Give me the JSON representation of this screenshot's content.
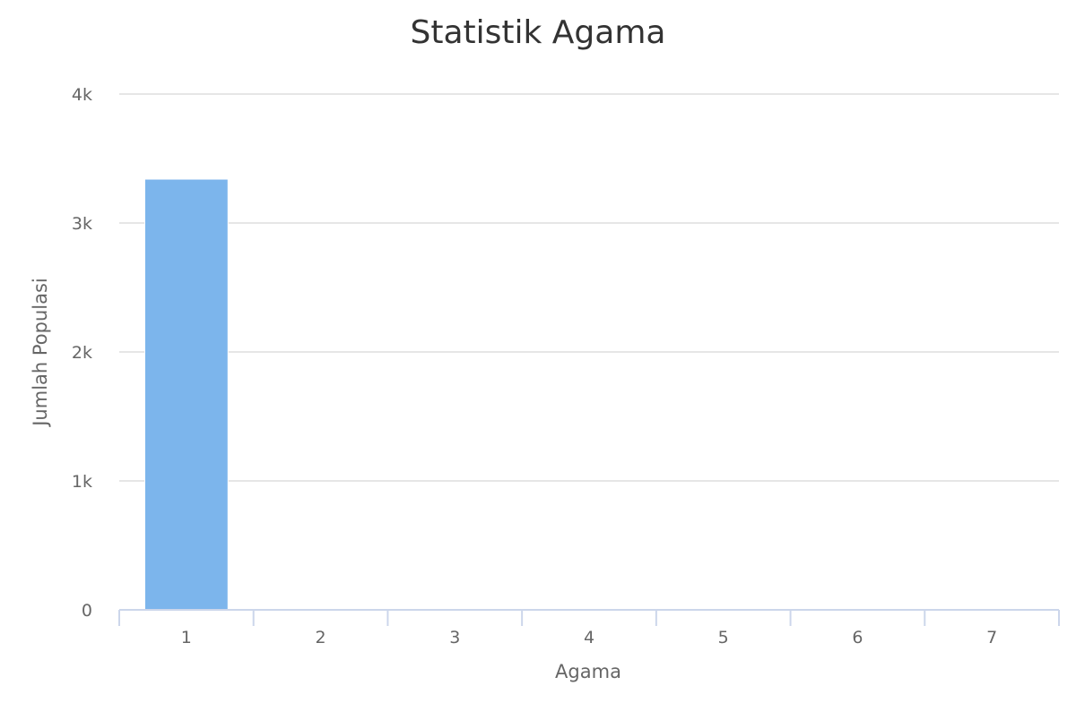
{
  "chart_data": {
    "type": "bar",
    "title": "Statistik Agama",
    "xlabel": "Agama",
    "ylabel": "Jumlah Populasi",
    "categories": [
      "1",
      "2",
      "3",
      "4",
      "5",
      "6",
      "7"
    ],
    "values": [
      3340,
      0,
      0,
      0,
      0,
      0,
      0
    ],
    "ylim": [
      0,
      4000
    ],
    "yticks": [
      0,
      1000,
      2000,
      3000,
      4000
    ],
    "ytick_labels": [
      "0",
      "1k",
      "2k",
      "3k",
      "4k"
    ],
    "grid": true,
    "legend": "none",
    "colors": {
      "bar": "#7cb5ec",
      "grid": "#e6e6e6",
      "axis": "#ccd6eb",
      "title": "#333333",
      "label": "#666666"
    }
  }
}
